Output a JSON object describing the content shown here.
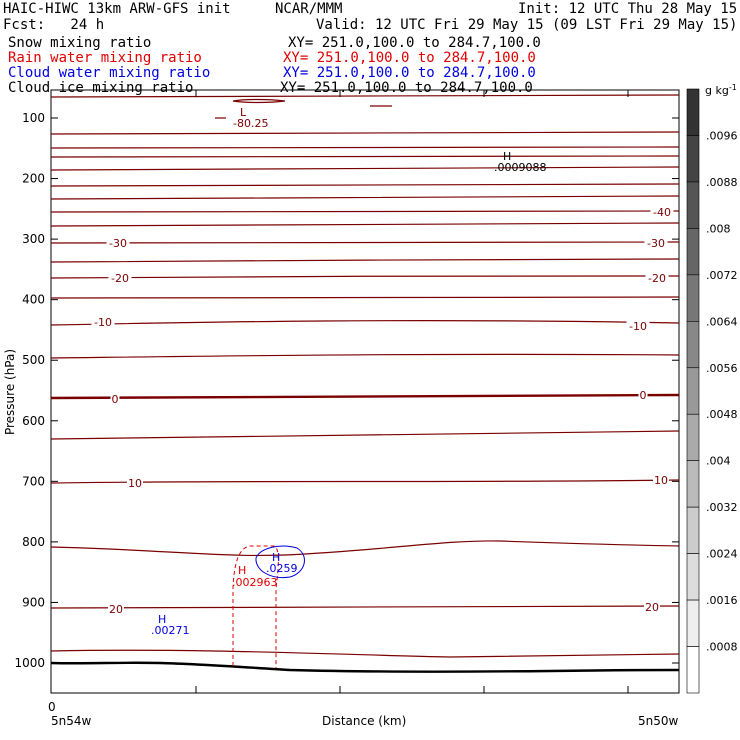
{
  "header": {
    "title": "HAIC-HIWC 13km ARW-GFS init",
    "org": "NCAR/MMM",
    "init": "Init: 12 UTC Thu 28 May 15",
    "fcst": "Fcst:   24 h",
    "valid": "Valid: 12 UTC Fri 29 May 15 (09 LST Fri 29 May 15)"
  },
  "fields": [
    {
      "name": "Snow mixing ratio",
      "xy": "XY= 251.0,100.0 to 284.7,100.0",
      "color": "#000000"
    },
    {
      "name": "Rain water mixing ratio",
      "xy": "XY= 251.0,100.0 to 284.7,100.0",
      "color": "#e00000"
    },
    {
      "name": "Cloud water mixing ratio",
      "xy": "XY= 251.0,100.0 to 284.7,100.0",
      "color": "#0000e0"
    },
    {
      "name": "Cloud ice mixing ratio",
      "xy": "XY= 251.0,100.0 to 284.7,100.0",
      "color": "#000000"
    }
  ],
  "colorbar": {
    "unit": "g kg",
    "unit_sup": "-1",
    "labels": [
      ".0096",
      ".0088",
      ".008",
      ".0072",
      ".0064",
      ".0056",
      ".0048",
      ".004",
      ".0032",
      ".0024",
      ".0016",
      ".0008"
    ],
    "bands": [
      "#333333",
      "#444444",
      "#555555",
      "#666666",
      "#777777",
      "#888888",
      "#999999",
      "#aaaaaa",
      "#bbbbbb",
      "#cccccc",
      "#dddddd",
      "#eeeeee",
      "#ffffff"
    ]
  },
  "chart_data": {
    "type": "contour",
    "ylabel": "Pressure (hPa)",
    "xlabel": "Distance (km)",
    "y_ticks": [
      100,
      200,
      300,
      400,
      500,
      600,
      700,
      800,
      900,
      1000
    ],
    "x_tick_label": "0",
    "x_left_label": "5n54w",
    "x_right_label": "5n50w",
    "temperature_contour_labels": [
      {
        "text": "-40",
        "color": "#7a0000"
      },
      {
        "text": "-30",
        "color": "#7a0000"
      },
      {
        "text": "-30",
        "color": "#7a0000"
      },
      {
        "text": "-20",
        "color": "#7a0000"
      },
      {
        "text": "-20",
        "color": "#7a0000"
      },
      {
        "text": "-10",
        "color": "#7a0000"
      },
      {
        "text": "-10",
        "color": "#7a0000"
      },
      {
        "text": "0",
        "color": "#7a0000"
      },
      {
        "text": "0",
        "color": "#7a0000"
      },
      {
        "text": "10",
        "color": "#7a0000"
      },
      {
        "text": "10",
        "color": "#7a0000"
      },
      {
        "text": "20",
        "color": "#7a0000"
      },
      {
        "text": "20",
        "color": "#7a0000"
      }
    ],
    "extrema": [
      {
        "letter": "L",
        "value": "-80.25",
        "color": "#7a0000"
      },
      {
        "letter": "H",
        "value": ".0009088",
        "color": "#000000"
      },
      {
        "letter": "H",
        "value": ".002963",
        "color": "#e00000"
      },
      {
        "letter": "H",
        "value": ".0259",
        "color": "#0000e0"
      },
      {
        "letter": "H",
        "value": ".00271",
        "color": "#0000e0"
      }
    ]
  }
}
